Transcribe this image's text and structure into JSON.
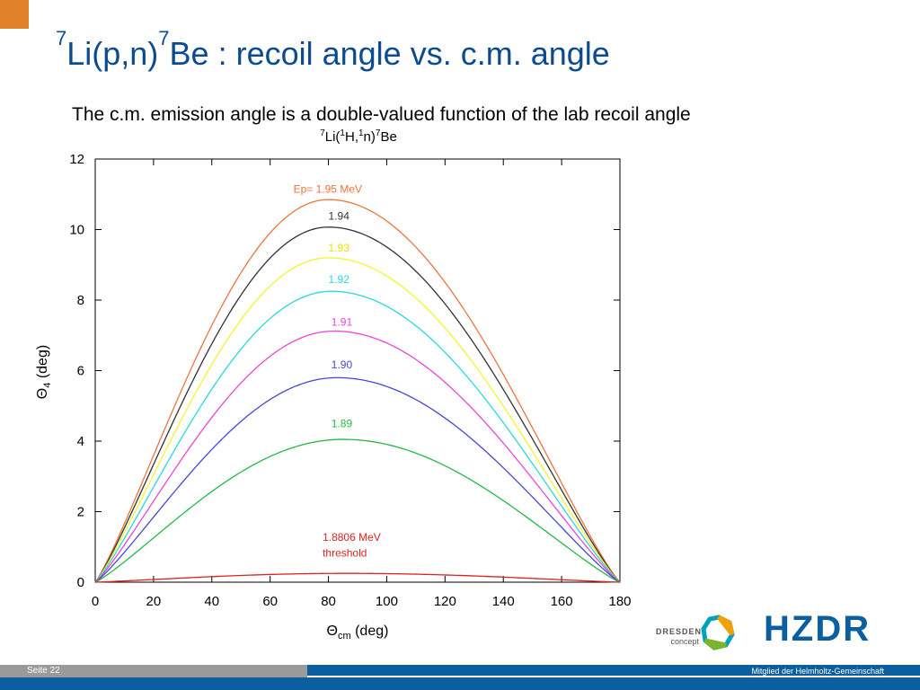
{
  "slide": {
    "title_base_sup": "7",
    "title_base": "Li(p,n)",
    "title_product_sup": "7",
    "title_rest": "Be : recoil angle vs. c.m. angle",
    "subtitle": "The c.m. emission angle is a double-valued function of the lab recoil angle",
    "page_number": "Seite 22",
    "member_text": "Mitglied der Helmholtz-Gemeinschaft",
    "logo_dresden_line1": "DRESDEN",
    "logo_dresden_line2": "concept",
    "logo_hzdr": "HZDR",
    "accent_color": "#e2802a",
    "footer_color": "#0b5f9e"
  },
  "chart_data": {
    "type": "line",
    "title": "7Li(1H,1n)7Be",
    "xlabel": "Θcm (deg)",
    "ylabel": "Θ4 (deg)",
    "xlim": [
      0,
      180
    ],
    "ylim": [
      0,
      12
    ],
    "xticks": [
      0,
      20,
      40,
      60,
      80,
      100,
      120,
      140,
      160,
      180
    ],
    "yticks": [
      0,
      2,
      4,
      6,
      8,
      10,
      12
    ],
    "grid": false,
    "series": [
      {
        "name": "Ep= 1.95 MeV",
        "color": "#f0733c",
        "peak_x": 80,
        "peak_y": 10.85,
        "label_x": 68,
        "label_y": 11.05
      },
      {
        "name": "1.94",
        "color": "#333333",
        "peak_x": 80,
        "peak_y": 10.07,
        "label_x": 80,
        "label_y": 10.28
      },
      {
        "name": "1.93",
        "color": "#f5f52a",
        "peak_x": 80,
        "peak_y": 9.2,
        "label_x": 80,
        "label_y": 9.38
      },
      {
        "name": "1.92",
        "color": "#2ad8dd",
        "peak_x": 81,
        "peak_y": 8.25,
        "label_x": 80,
        "label_y": 8.48
      },
      {
        "name": "1.91",
        "color": "#ee44d6",
        "peak_x": 82,
        "peak_y": 7.12,
        "label_x": 81,
        "label_y": 7.28
      },
      {
        "name": "1.90",
        "color": "#4646d8",
        "peak_x": 83,
        "peak_y": 5.8,
        "label_x": 81,
        "label_y": 6.07
      },
      {
        "name": "1.89",
        "color": "#22b945",
        "peak_x": 85,
        "peak_y": 4.05,
        "label_x": 81,
        "label_y": 4.4
      },
      {
        "name": "1.8806 MeV",
        "color": "#dd2222",
        "peak_x": 86,
        "peak_y": 0.25,
        "label_x": 78,
        "label_y": 1.17
      }
    ],
    "annotations": [
      {
        "text": "threshold",
        "x": 78,
        "y": 0.72,
        "color": "#dd2222"
      }
    ]
  }
}
